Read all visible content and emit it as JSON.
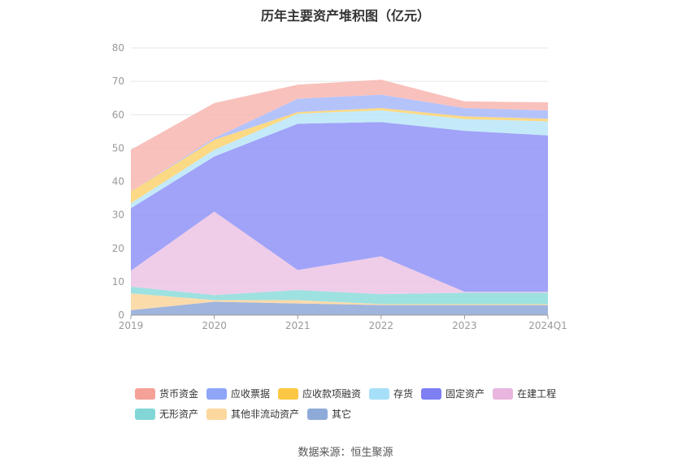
{
  "title": "历年主要资产堆积图（亿元）",
  "source": "数据来源：恒生聚源",
  "chart_data": {
    "type": "area",
    "stacked": true,
    "x": [
      "2019",
      "2020",
      "2021",
      "2022",
      "2023",
      "2024Q1"
    ],
    "ylim": [
      0,
      80
    ],
    "yticks": [
      0,
      10,
      20,
      30,
      40,
      50,
      60,
      70,
      80
    ],
    "grid": true,
    "legend_position": "bottom",
    "series": [
      {
        "name": "其它",
        "color": "#8ea8d8",
        "values": [
          1.5,
          4.0,
          3.5,
          3.0,
          3.0,
          3.0
        ]
      },
      {
        "name": "其他非流动资产",
        "color": "#fcd59c",
        "values": [
          5.0,
          0.5,
          1.0,
          0.3,
          0.3,
          0.3
        ]
      },
      {
        "name": "无形资产",
        "color": "#8cdcdc",
        "values": [
          2.0,
          1.5,
          3.0,
          3.0,
          3.4,
          3.4
        ]
      },
      {
        "name": "在建工程",
        "color": "#ecc4e4",
        "values": [
          4.8,
          25.0,
          6.0,
          11.3,
          0.3,
          0.3
        ]
      },
      {
        "name": "固定资产",
        "color": "#8f93f7",
        "values": [
          18.7,
          16.5,
          43.8,
          40.2,
          48.2,
          46.8
        ]
      },
      {
        "name": "存货",
        "color": "#bae6f8",
        "values": [
          1.5,
          2.0,
          3.0,
          3.5,
          3.5,
          4.2
        ]
      },
      {
        "name": "应收款项融资",
        "color": "#fcd26f",
        "values": [
          3.5,
          3.0,
          0.5,
          0.7,
          0.8,
          0.8
        ]
      },
      {
        "name": "应收票据",
        "color": "#a8b8fa",
        "values": [
          0.0,
          0.5,
          4.0,
          4.0,
          2.5,
          2.5
        ]
      },
      {
        "name": "货币资金",
        "color": "#f8b6b0",
        "values": [
          12.5,
          10.5,
          4.2,
          4.5,
          2.0,
          2.4
        ]
      }
    ],
    "legend_order": [
      "货币资金",
      "应收票据",
      "应收款项融资",
      "存货",
      "固定资产",
      "在建工程",
      "无形资产",
      "其他非流动资产",
      "其它"
    ],
    "legend_colors": {
      "货币资金": "#f4a198",
      "应收票据": "#8fa6f7",
      "应收款项融资": "#fcc744",
      "存货": "#a6e0f8",
      "固定资产": "#7d7ff2",
      "在建工程": "#e8b6de",
      "无形资产": "#82d6d6",
      "其他非流动资产": "#fcd79e",
      "其它": "#8eaad8"
    }
  }
}
